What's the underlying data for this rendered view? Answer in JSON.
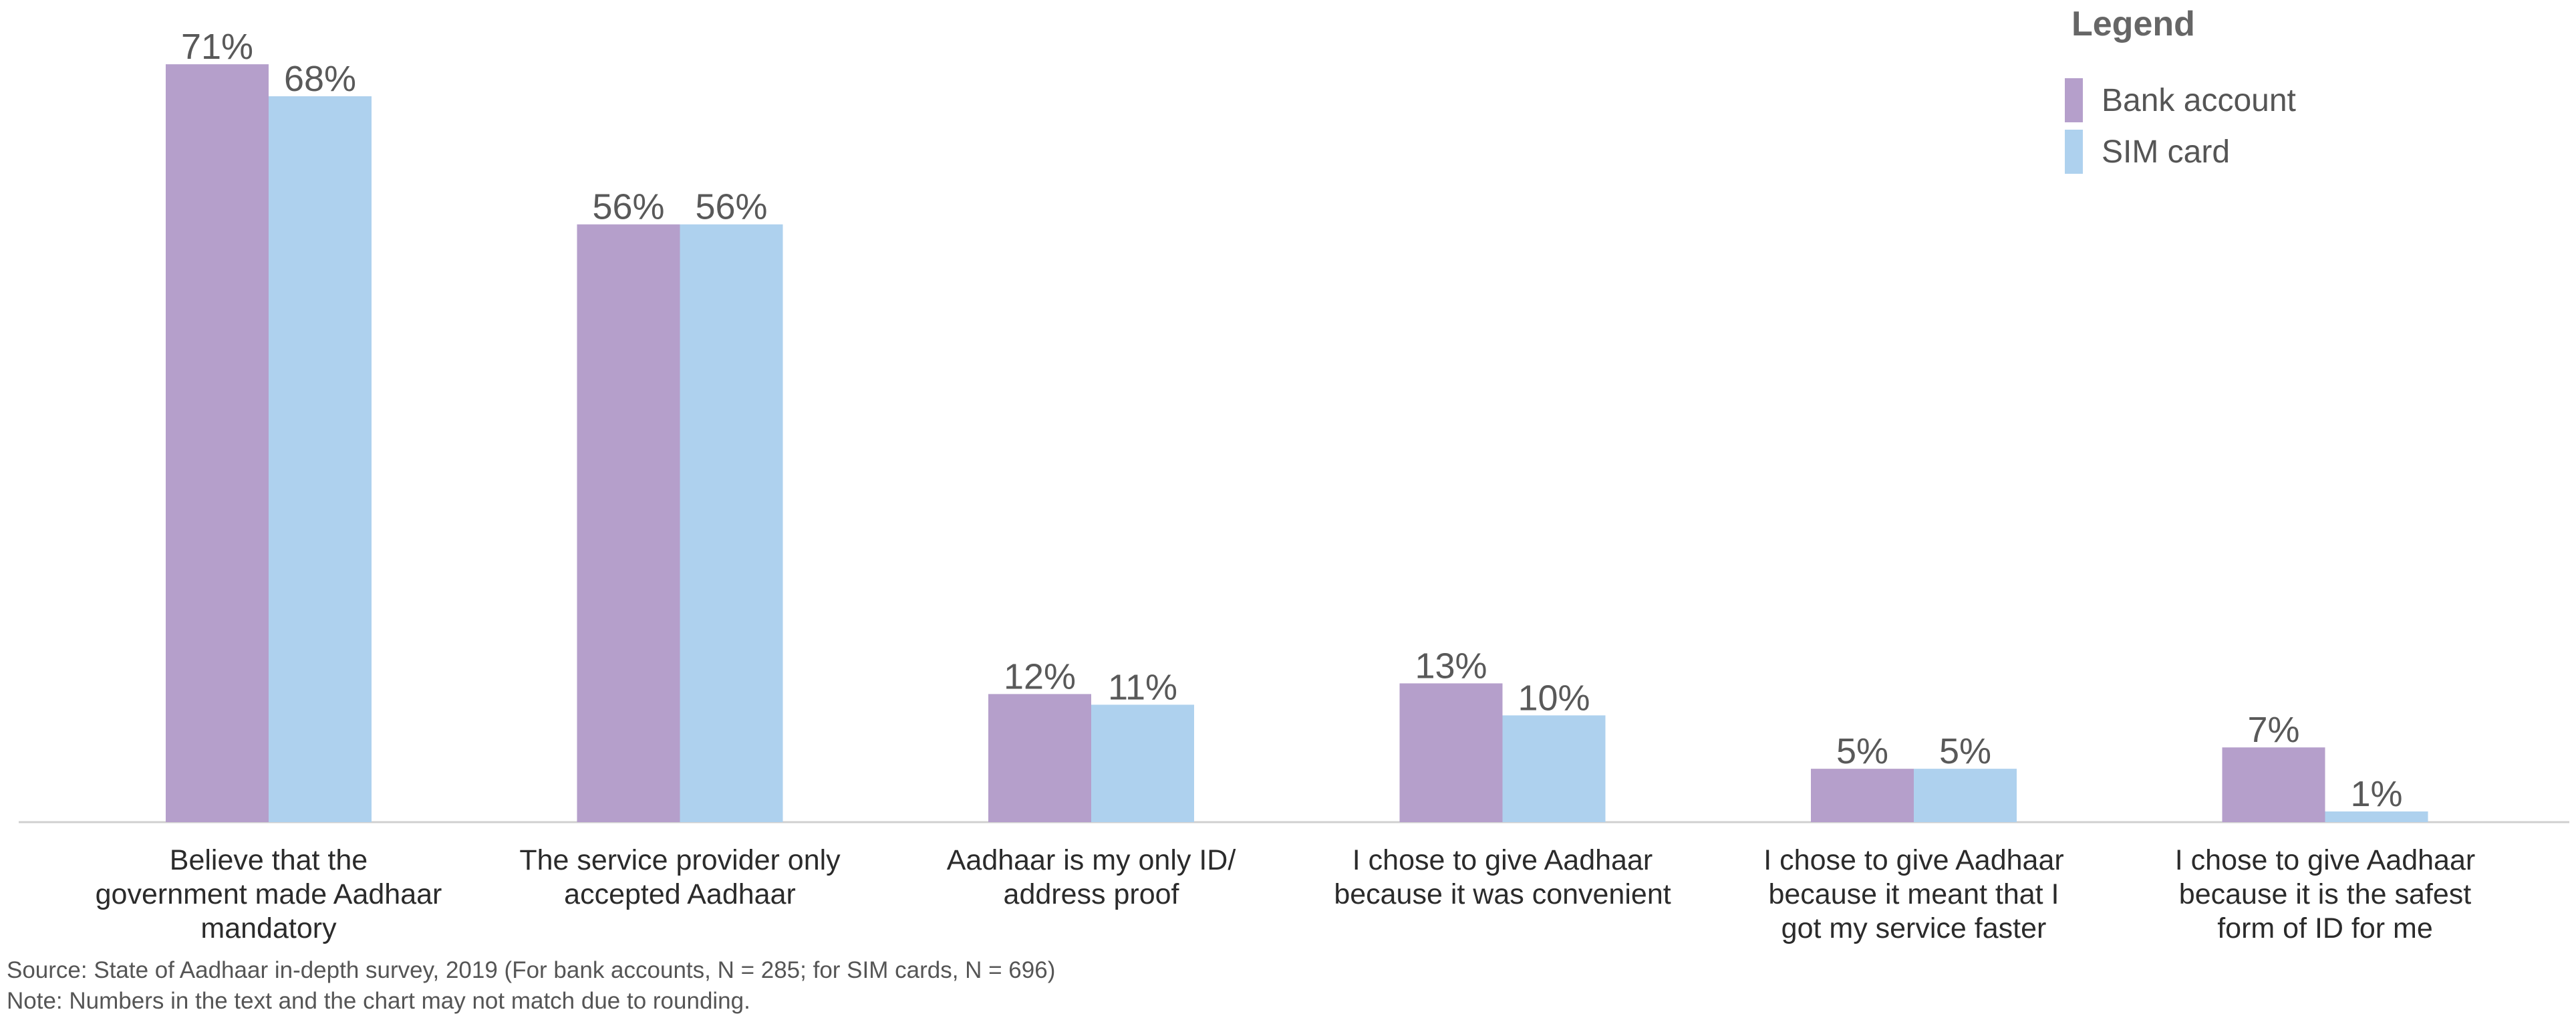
{
  "chart_data": {
    "type": "bar",
    "categories": [
      [
        "Believe that the",
        "government made Aadhaar",
        "mandatory"
      ],
      [
        "The service provider only",
        "accepted Aadhaar"
      ],
      [
        "Aadhaar is my only ID/",
        "address proof"
      ],
      [
        "I chose to give Aadhaar",
        "because it was convenient"
      ],
      [
        "I chose to give Aadhaar",
        "because it meant that I",
        "got my service faster"
      ],
      [
        "I chose to give Aadhaar",
        "because it is the safest",
        "form of ID for me"
      ]
    ],
    "series": [
      {
        "name": "Bank account",
        "color": "#b59fcb",
        "values": [
          71,
          56,
          12,
          13,
          5,
          7
        ],
        "labels": [
          "71%",
          "56%",
          "12%",
          "13%",
          "5%",
          "7%"
        ]
      },
      {
        "name": "SIM card",
        "color": "#aed1ee",
        "values": [
          68,
          56,
          11,
          10,
          5,
          1
        ],
        "labels": [
          "68%",
          "56%",
          "11%",
          "10%",
          "5%",
          "1%"
        ]
      }
    ],
    "ylim": [
      0,
      75
    ],
    "grid": false,
    "legend": {
      "title": "Legend",
      "position": "top-right"
    }
  },
  "footnotes": {
    "source": "Source: State of Aadhaar in-depth survey, 2019 (For bank accounts, N = 285; for SIM cards, N = 696)",
    "note": "Note: Numbers in the text and the chart may not match due to rounding."
  }
}
